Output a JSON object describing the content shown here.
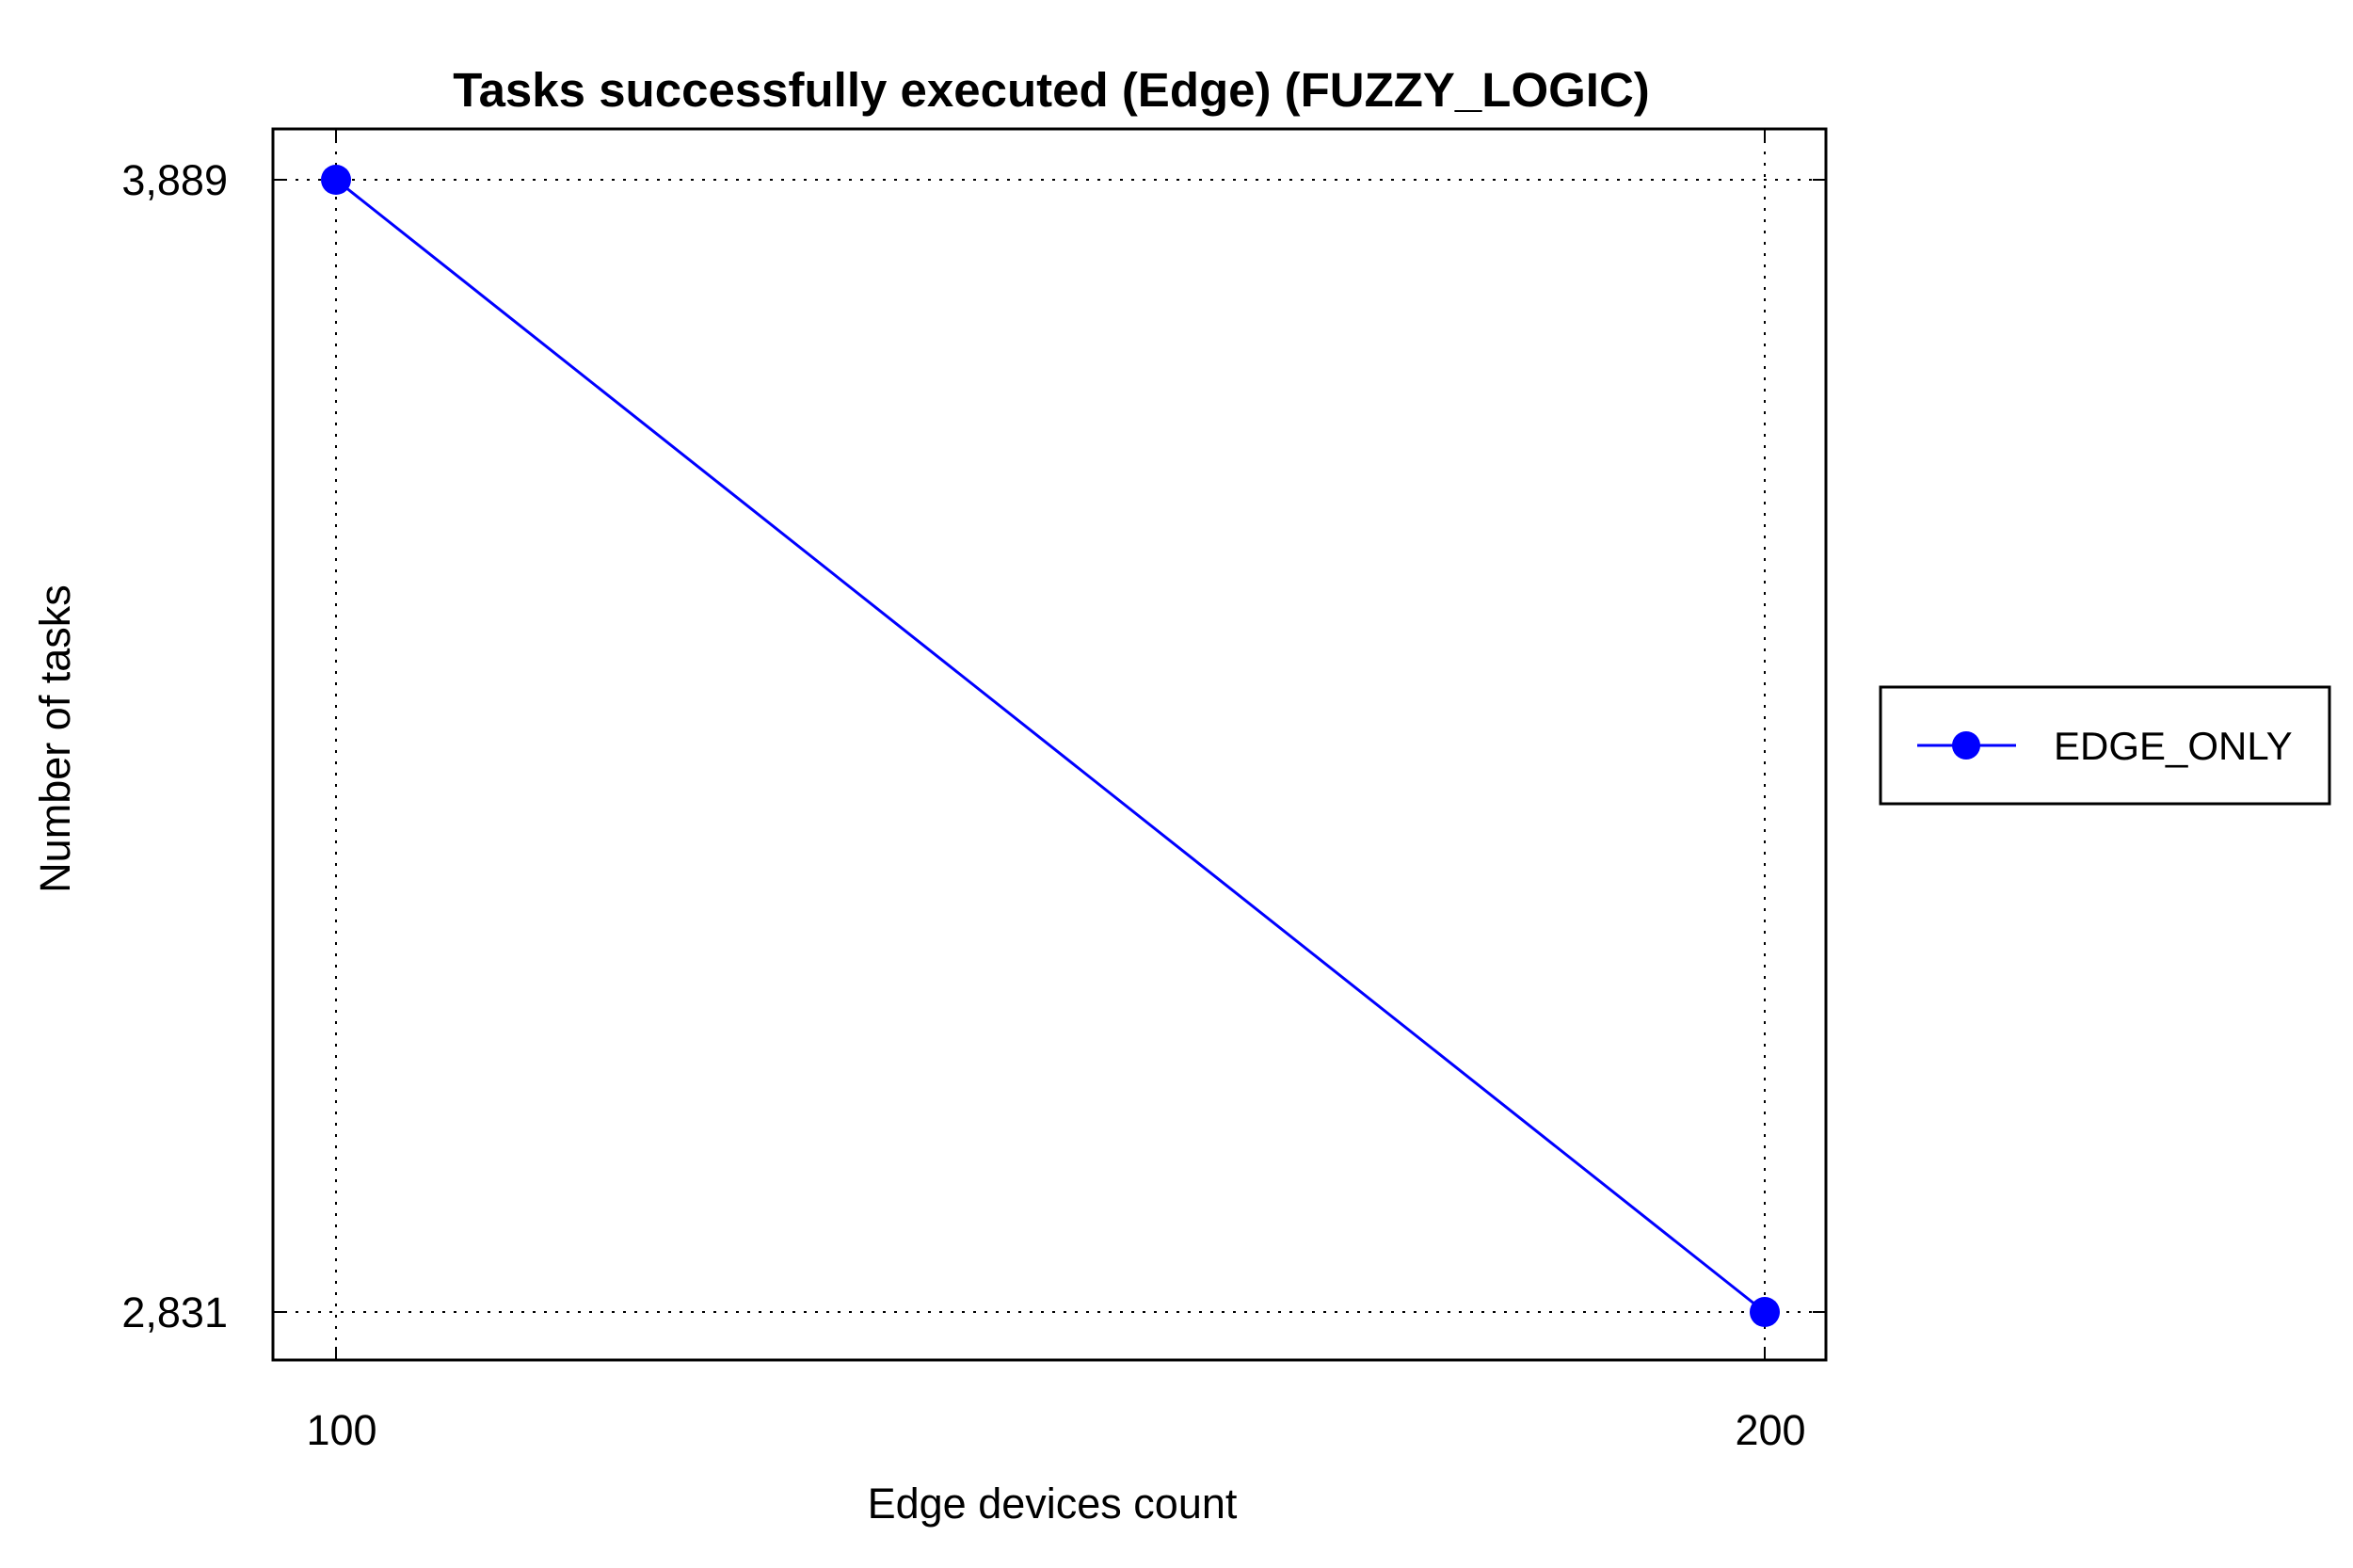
{
  "chart_data": {
    "type": "line",
    "title": "Tasks successfully executed (Edge) (FUZZY_LOGIC)",
    "xlabel": "Edge devices count",
    "ylabel": "Number of tasks",
    "x": [
      100,
      200
    ],
    "x_tick_labels": [
      "100",
      "200"
    ],
    "y_tick_labels": [
      "3,889",
      "2,831"
    ],
    "y_ticks": [
      3889,
      2831
    ],
    "series": [
      {
        "name": "EDGE_ONLY",
        "values": [
          3889,
          2831
        ],
        "color": "#0000ff",
        "marker": "circle"
      }
    ],
    "grid": true,
    "legend_position": "right"
  }
}
